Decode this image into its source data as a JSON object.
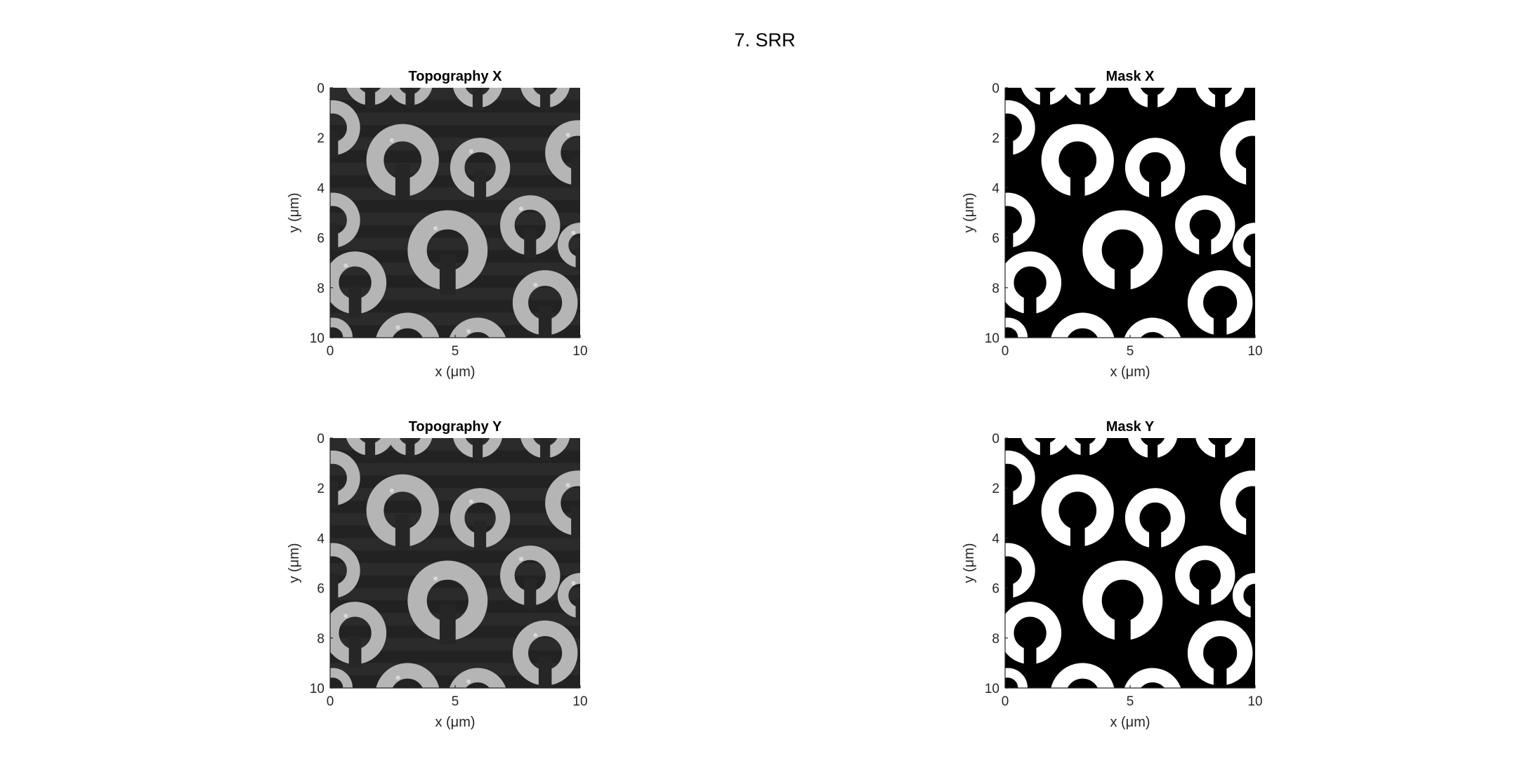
{
  "figure": {
    "title": "7. SRR"
  },
  "chart_data": [
    {
      "type": "heatmap",
      "id": "topo-x",
      "title": "Topography X",
      "xlabel": "x (μm)",
      "ylabel": "y (μm)",
      "xlim": [
        0,
        10
      ],
      "ylim": [
        10,
        0
      ],
      "xticks": [
        "0",
        "5",
        "10"
      ],
      "yticks": [
        "0",
        "2",
        "4",
        "6",
        "8",
        "10"
      ],
      "colormap": "gray",
      "background": "#262626",
      "foreground": "#b5b5b5",
      "rings": [
        {
          "cx": 0.1,
          "cy": 1.6,
          "r": 1.1,
          "gap": 0
        },
        {
          "cx": 2.9,
          "cy": 2.9,
          "r": 1.45,
          "gap": 0
        },
        {
          "cx": 6.0,
          "cy": 3.2,
          "r": 1.2,
          "gap": 0
        },
        {
          "cx": 9.9,
          "cy": 2.6,
          "r": 1.3,
          "gap": 0
        },
        {
          "cx": 0.1,
          "cy": 5.3,
          "r": 1.1,
          "gap": 0
        },
        {
          "cx": 4.7,
          "cy": 6.5,
          "r": 1.6,
          "gap": 0
        },
        {
          "cx": 8.0,
          "cy": 5.5,
          "r": 1.2,
          "gap": 0
        },
        {
          "cx": 10.0,
          "cy": 6.3,
          "r": 0.9,
          "gap": 0
        },
        {
          "cx": 1.0,
          "cy": 7.8,
          "r": 1.25,
          "gap": 0
        },
        {
          "cx": 8.6,
          "cy": 8.6,
          "r": 1.3,
          "gap": 0
        },
        {
          "cx": 0.1,
          "cy": 10.0,
          "r": 0.8,
          "gap": 1
        },
        {
          "cx": 3.1,
          "cy": 10.3,
          "r": 1.3,
          "gap": 1
        },
        {
          "cx": 5.9,
          "cy": 10.4,
          "r": 1.2,
          "gap": 1
        },
        {
          "cx": 1.6,
          "cy": -0.3,
          "r": 1.0,
          "gap": 1
        },
        {
          "cx": 3.2,
          "cy": -0.2,
          "r": 0.9,
          "gap": 1
        },
        {
          "cx": 5.9,
          "cy": -0.2,
          "r": 1.0,
          "gap": 1
        },
        {
          "cx": 8.6,
          "cy": -0.2,
          "r": 1.0,
          "gap": 1
        }
      ]
    },
    {
      "type": "heatmap",
      "id": "mask-x",
      "title": "Mask X",
      "xlabel": "x (μm)",
      "ylabel": "y (μm)",
      "xlim": [
        0,
        10
      ],
      "ylim": [
        10,
        0
      ],
      "xticks": [
        "0",
        "5",
        "10"
      ],
      "yticks": [
        "0",
        "2",
        "4",
        "6",
        "8",
        "10"
      ],
      "colormap": "binary",
      "background": "#000000",
      "foreground": "#ffffff",
      "rings": [
        {
          "cx": 0.1,
          "cy": 1.6,
          "r": 1.1,
          "gap": 0
        },
        {
          "cx": 2.9,
          "cy": 2.9,
          "r": 1.45,
          "gap": 0
        },
        {
          "cx": 6.0,
          "cy": 3.2,
          "r": 1.2,
          "gap": 0
        },
        {
          "cx": 9.9,
          "cy": 2.6,
          "r": 1.3,
          "gap": 0
        },
        {
          "cx": 0.1,
          "cy": 5.3,
          "r": 1.1,
          "gap": 0
        },
        {
          "cx": 4.7,
          "cy": 6.5,
          "r": 1.6,
          "gap": 0
        },
        {
          "cx": 8.0,
          "cy": 5.5,
          "r": 1.2,
          "gap": 0
        },
        {
          "cx": 10.0,
          "cy": 6.3,
          "r": 0.9,
          "gap": 0
        },
        {
          "cx": 1.0,
          "cy": 7.8,
          "r": 1.25,
          "gap": 0
        },
        {
          "cx": 8.6,
          "cy": 8.6,
          "r": 1.3,
          "gap": 0
        },
        {
          "cx": 0.1,
          "cy": 10.0,
          "r": 0.8,
          "gap": 1
        },
        {
          "cx": 3.1,
          "cy": 10.3,
          "r": 1.3,
          "gap": 1
        },
        {
          "cx": 5.9,
          "cy": 10.4,
          "r": 1.2,
          "gap": 1
        },
        {
          "cx": 1.6,
          "cy": -0.3,
          "r": 1.0,
          "gap": 1
        },
        {
          "cx": 3.2,
          "cy": -0.2,
          "r": 0.9,
          "gap": 1
        },
        {
          "cx": 5.9,
          "cy": -0.2,
          "r": 1.0,
          "gap": 1
        },
        {
          "cx": 8.6,
          "cy": -0.2,
          "r": 1.0,
          "gap": 1
        }
      ]
    },
    {
      "type": "heatmap",
      "id": "topo-y",
      "title": "Topography Y",
      "xlabel": "x (μm)",
      "ylabel": "y (μm)",
      "xlim": [
        0,
        10
      ],
      "ylim": [
        10,
        0
      ],
      "xticks": [
        "0",
        "5",
        "10"
      ],
      "yticks": [
        "0",
        "2",
        "4",
        "6",
        "8",
        "10"
      ],
      "colormap": "gray",
      "background": "#262626",
      "foreground": "#b5b5b5",
      "rings": [
        {
          "cx": 0.1,
          "cy": 1.6,
          "r": 1.1,
          "gap": 0
        },
        {
          "cx": 2.9,
          "cy": 2.9,
          "r": 1.45,
          "gap": 0
        },
        {
          "cx": 6.0,
          "cy": 3.2,
          "r": 1.2,
          "gap": 0
        },
        {
          "cx": 9.9,
          "cy": 2.6,
          "r": 1.3,
          "gap": 0
        },
        {
          "cx": 0.1,
          "cy": 5.3,
          "r": 1.1,
          "gap": 0
        },
        {
          "cx": 4.7,
          "cy": 6.5,
          "r": 1.6,
          "gap": 0
        },
        {
          "cx": 8.0,
          "cy": 5.5,
          "r": 1.2,
          "gap": 0
        },
        {
          "cx": 10.0,
          "cy": 6.3,
          "r": 0.9,
          "gap": 0
        },
        {
          "cx": 1.0,
          "cy": 7.8,
          "r": 1.25,
          "gap": 0
        },
        {
          "cx": 8.6,
          "cy": 8.6,
          "r": 1.3,
          "gap": 0
        },
        {
          "cx": 0.1,
          "cy": 10.0,
          "r": 0.8,
          "gap": 1
        },
        {
          "cx": 3.1,
          "cy": 10.3,
          "r": 1.3,
          "gap": 1
        },
        {
          "cx": 5.9,
          "cy": 10.4,
          "r": 1.2,
          "gap": 1
        },
        {
          "cx": 1.6,
          "cy": -0.3,
          "r": 1.0,
          "gap": 1
        },
        {
          "cx": 3.2,
          "cy": -0.2,
          "r": 0.9,
          "gap": 1
        },
        {
          "cx": 5.9,
          "cy": -0.2,
          "r": 1.0,
          "gap": 1
        },
        {
          "cx": 8.6,
          "cy": -0.2,
          "r": 1.0,
          "gap": 1
        }
      ]
    },
    {
      "type": "heatmap",
      "id": "mask-y",
      "title": "Mask Y",
      "xlabel": "x (μm)",
      "ylabel": "y (μm)",
      "xlim": [
        0,
        10
      ],
      "ylim": [
        10,
        0
      ],
      "xticks": [
        "0",
        "5",
        "10"
      ],
      "yticks": [
        "0",
        "2",
        "4",
        "6",
        "8",
        "10"
      ],
      "colormap": "binary",
      "background": "#000000",
      "foreground": "#ffffff",
      "rings": [
        {
          "cx": 0.1,
          "cy": 1.6,
          "r": 1.1,
          "gap": 0
        },
        {
          "cx": 2.9,
          "cy": 2.9,
          "r": 1.45,
          "gap": 0
        },
        {
          "cx": 6.0,
          "cy": 3.2,
          "r": 1.2,
          "gap": 0
        },
        {
          "cx": 9.9,
          "cy": 2.6,
          "r": 1.3,
          "gap": 0
        },
        {
          "cx": 0.1,
          "cy": 5.3,
          "r": 1.1,
          "gap": 0
        },
        {
          "cx": 4.7,
          "cy": 6.5,
          "r": 1.6,
          "gap": 0
        },
        {
          "cx": 8.0,
          "cy": 5.5,
          "r": 1.2,
          "gap": 0
        },
        {
          "cx": 10.0,
          "cy": 6.3,
          "r": 0.9,
          "gap": 0
        },
        {
          "cx": 1.0,
          "cy": 7.8,
          "r": 1.25,
          "gap": 0
        },
        {
          "cx": 8.6,
          "cy": 8.6,
          "r": 1.3,
          "gap": 0
        },
        {
          "cx": 0.1,
          "cy": 10.0,
          "r": 0.8,
          "gap": 1
        },
        {
          "cx": 3.1,
          "cy": 10.3,
          "r": 1.3,
          "gap": 1
        },
        {
          "cx": 5.9,
          "cy": 10.4,
          "r": 1.2,
          "gap": 1
        },
        {
          "cx": 1.6,
          "cy": -0.3,
          "r": 1.0,
          "gap": 1
        },
        {
          "cx": 3.2,
          "cy": -0.2,
          "r": 0.9,
          "gap": 1
        },
        {
          "cx": 5.9,
          "cy": -0.2,
          "r": 1.0,
          "gap": 1
        },
        {
          "cx": 8.6,
          "cy": -0.2,
          "r": 1.0,
          "gap": 1
        }
      ]
    }
  ]
}
